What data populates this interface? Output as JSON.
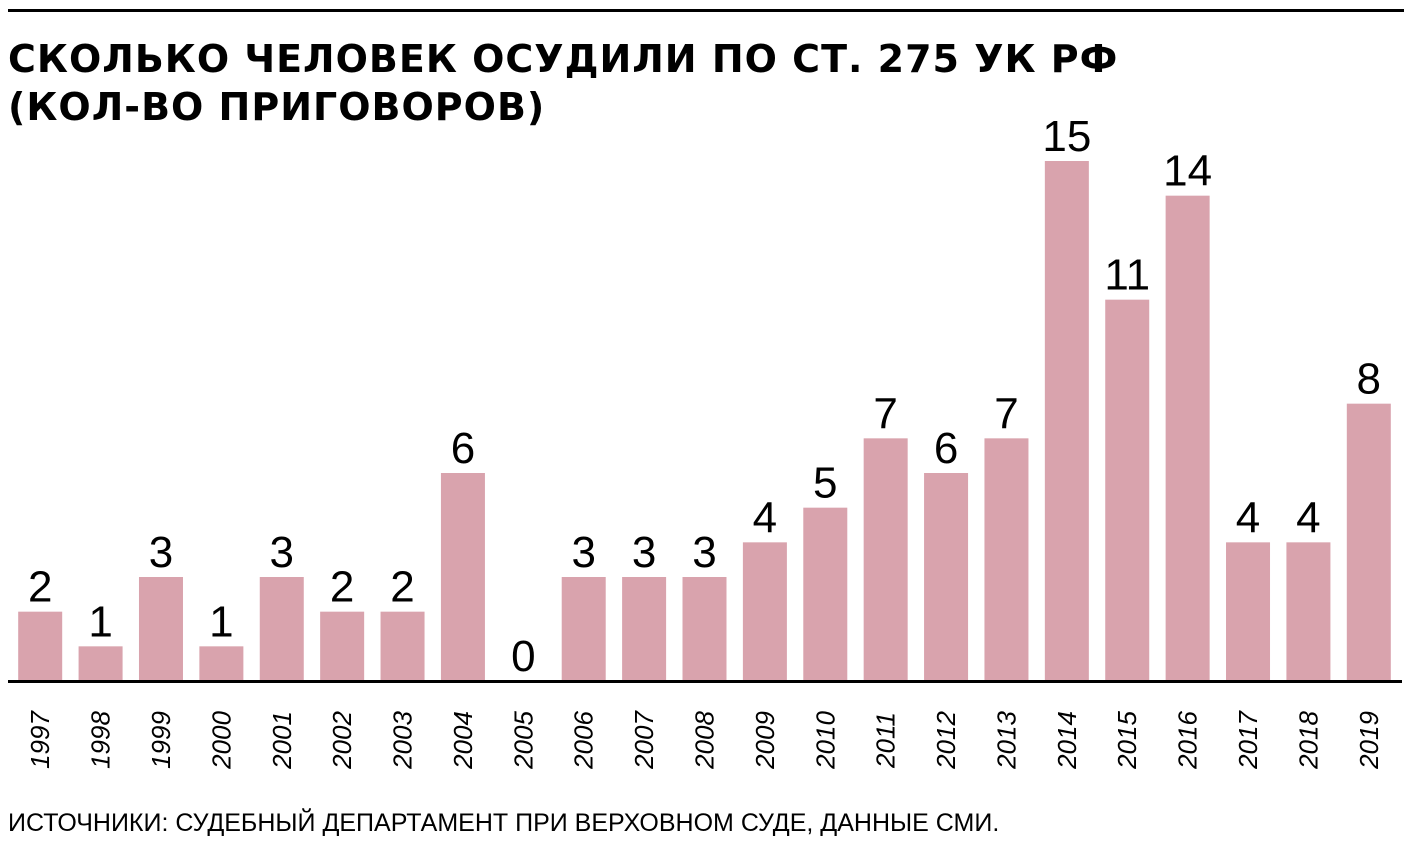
{
  "chart_data": {
    "type": "bar",
    "title": [
      "СКОЛЬКО ЧЕЛОВЕК ОСУДИЛИ ПО СТ. 275 УК РФ",
      "(КОЛ-ВО ПРИГОВОРОВ)"
    ],
    "categories": [
      "1997",
      "1998",
      "1999",
      "2000",
      "2001",
      "2002",
      "2003",
      "2004",
      "2005",
      "2006",
      "2007",
      "2008",
      "2009",
      "2010",
      "2011",
      "2012",
      "2013",
      "2014",
      "2015",
      "2016",
      "2017",
      "2018",
      "2019"
    ],
    "values": [
      2,
      1,
      3,
      1,
      3,
      2,
      2,
      6,
      0,
      3,
      3,
      3,
      4,
      5,
      7,
      6,
      7,
      15,
      11,
      14,
      4,
      4,
      8
    ],
    "color": "#d9a3ad",
    "ylim": [
      0,
      15
    ],
    "source": "ИСТОЧНИКИ: СУДЕБНЫЙ ДЕПАРТАМЕНТ ПРИ ВЕРХОВНОМ СУДЕ, ДАННЫЕ СМИ."
  }
}
